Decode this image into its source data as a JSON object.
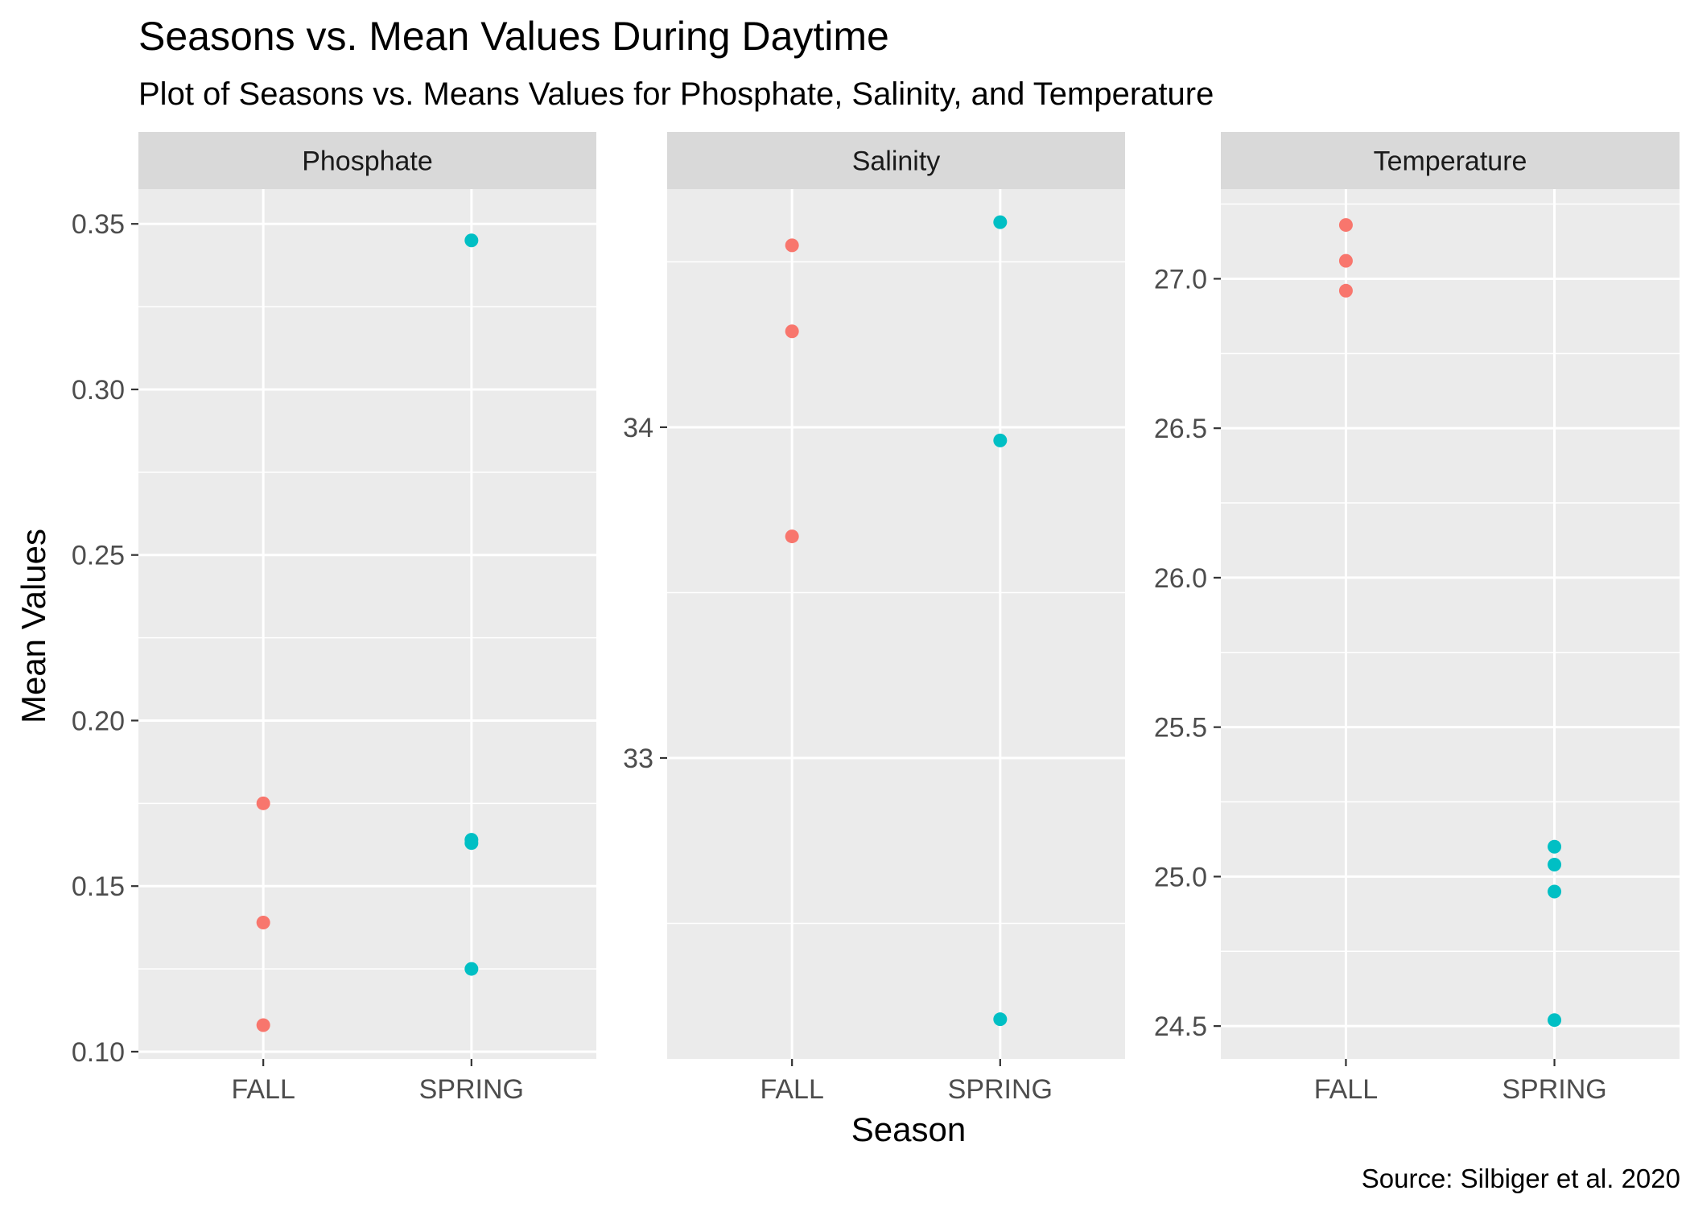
{
  "chart_data": {
    "type": "scatter",
    "title": "Seasons vs. Mean Values During Daytime",
    "subtitle": "Plot of Seasons vs. Means Values for Phosphate, Salinity, and Temperature",
    "xlabel": "Season",
    "ylabel": "Mean Values",
    "caption": "Source: Silbiger et al. 2020",
    "categories": [
      "FALL",
      "SPRING"
    ],
    "grid": true,
    "legend": "none",
    "colors": {
      "FALL": "#F8766D",
      "SPRING": "#00BFC4"
    },
    "panels": [
      {
        "name": "Phosphate",
        "ylim": [
          0.0978,
          0.3605
        ],
        "yticks": [
          0.1,
          0.15,
          0.2,
          0.25,
          0.3,
          0.35
        ],
        "ytick_labels": [
          "0.10",
          "0.15",
          "0.20",
          "0.25",
          "0.30",
          "0.35"
        ],
        "minor_ticks": [
          0.125,
          0.175,
          0.225,
          0.275,
          0.325
        ],
        "points": [
          {
            "season": "FALL",
            "value": 0.175
          },
          {
            "season": "FALL",
            "value": 0.139
          },
          {
            "season": "FALL",
            "value": 0.108
          },
          {
            "season": "SPRING",
            "value": 0.345
          },
          {
            "season": "SPRING",
            "value": 0.164
          },
          {
            "season": "SPRING",
            "value": 0.163
          },
          {
            "season": "SPRING",
            "value": 0.125
          }
        ]
      },
      {
        "name": "Salinity",
        "ylim": [
          32.09,
          34.72
        ],
        "yticks": [
          33,
          34
        ],
        "ytick_labels": [
          "33",
          "34"
        ],
        "minor_ticks": [
          32.5,
          33.5,
          34.5
        ],
        "points": [
          {
            "season": "FALL",
            "value": 34.55
          },
          {
            "season": "FALL",
            "value": 34.29
          },
          {
            "season": "FALL",
            "value": 33.67
          },
          {
            "season": "SPRING",
            "value": 34.62
          },
          {
            "season": "SPRING",
            "value": 33.96
          },
          {
            "season": "SPRING",
            "value": 32.21
          }
        ]
      },
      {
        "name": "Temperature",
        "ylim": [
          24.39,
          27.3
        ],
        "yticks": [
          24.5,
          25.0,
          25.5,
          26.0,
          26.5,
          27.0
        ],
        "ytick_labels": [
          "24.5",
          "25.0",
          "25.5",
          "26.0",
          "26.5",
          "27.0"
        ],
        "minor_ticks": [
          24.75,
          25.25,
          25.75,
          26.25,
          26.75,
          27.25
        ],
        "points": [
          {
            "season": "FALL",
            "value": 27.18
          },
          {
            "season": "FALL",
            "value": 27.06
          },
          {
            "season": "FALL",
            "value": 26.96
          },
          {
            "season": "SPRING",
            "value": 25.1
          },
          {
            "season": "SPRING",
            "value": 25.04
          },
          {
            "season": "SPRING",
            "value": 24.95
          },
          {
            "season": "SPRING",
            "value": 24.52
          }
        ]
      }
    ]
  }
}
